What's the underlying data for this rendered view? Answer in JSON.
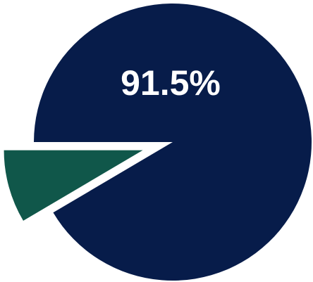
{
  "chart_data": {
    "type": "pie",
    "slices": [
      {
        "value": 91.5,
        "label": "91.5%",
        "color": "#071c4a",
        "exploded": false
      },
      {
        "value": 8.5,
        "label": "",
        "color": "#10574a",
        "exploded": true
      }
    ],
    "start_angle_degrees": 180,
    "direction": "clockwise",
    "label_color": "#ffffff"
  }
}
